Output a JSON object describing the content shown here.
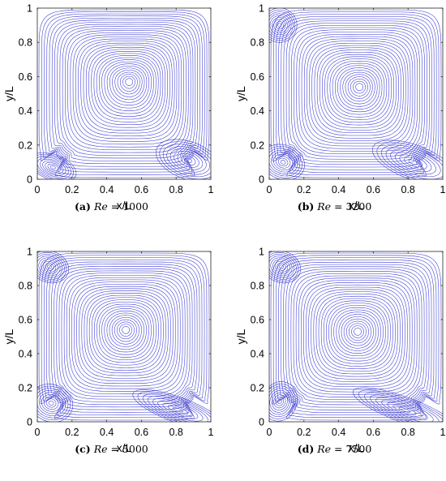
{
  "chart_data": [
    {
      "type": "streamline",
      "xlabel": "x/L",
      "ylabel": "y/L",
      "xlim": [
        0,
        1
      ],
      "ylim": [
        0,
        1
      ],
      "xticks": [
        "0",
        "0.2",
        "0.4",
        "0.6",
        "0.8",
        "1"
      ],
      "yticks": [
        "0",
        "0.2",
        "0.4",
        "0.6",
        "0.8",
        "1"
      ],
      "caption": {
        "letter": "(a)",
        "var": "Re",
        "eq": " = ",
        "value": "1000"
      },
      "primary_vortex": [
        0.53,
        0.57
      ],
      "secondary_vortices": [
        [
          0.09,
          0.07
        ],
        [
          0.87,
          0.11
        ]
      ]
    },
    {
      "type": "streamline",
      "xlabel": "x/L",
      "ylabel": "y/L",
      "xlim": [
        0,
        1
      ],
      "ylim": [
        0,
        1
      ],
      "xticks": [
        "0",
        "0.2",
        "0.4",
        "0.6",
        "0.8",
        "1"
      ],
      "yticks": [
        "0",
        "0.2",
        "0.4",
        "0.6",
        "0.8",
        "1"
      ],
      "caption": {
        "letter": "(b)",
        "var": "Re",
        "eq": " = ",
        "value": "3200"
      },
      "primary_vortex": [
        0.52,
        0.54
      ],
      "secondary_vortices": [
        [
          0.06,
          0.9
        ],
        [
          0.08,
          0.1
        ],
        [
          0.83,
          0.1
        ]
      ]
    },
    {
      "type": "streamline",
      "xlabel": "x/L",
      "ylabel": "y/L",
      "xlim": [
        0,
        1
      ],
      "ylim": [
        0,
        1
      ],
      "xticks": [
        "0",
        "0.2",
        "0.4",
        "0.6",
        "0.8",
        "1"
      ],
      "yticks": [
        "0",
        "0.2",
        "0.4",
        "0.6",
        "0.8",
        "1"
      ],
      "caption": {
        "letter": "(c)",
        "var": "Re",
        "eq": " = ",
        "value": "5000"
      },
      "primary_vortex": [
        0.51,
        0.54
      ],
      "secondary_vortices": [
        [
          0.07,
          0.91
        ],
        [
          0.08,
          0.11
        ],
        [
          0.81,
          0.07
        ]
      ]
    },
    {
      "type": "streamline",
      "xlabel": "x/L",
      "ylabel": "y/L",
      "xlim": [
        0,
        1
      ],
      "ylim": [
        0,
        1
      ],
      "xticks": [
        "0",
        "0.2",
        "0.4",
        "0.6",
        "0.8",
        "1"
      ],
      "yticks": [
        "0",
        "0.2",
        "0.4",
        "0.6",
        "0.8",
        "1"
      ],
      "caption": {
        "letter": "(d)",
        "var": "Re",
        "eq": " = ",
        "value": "7500"
      },
      "primary_vortex": [
        0.51,
        0.53
      ],
      "secondary_vortices": [
        [
          0.07,
          0.91
        ],
        [
          0.06,
          0.12
        ],
        [
          0.78,
          0.07
        ]
      ]
    }
  ],
  "colors": {
    "streamline": "#3535d0",
    "axis": "#262626",
    "text": "#000000"
  }
}
